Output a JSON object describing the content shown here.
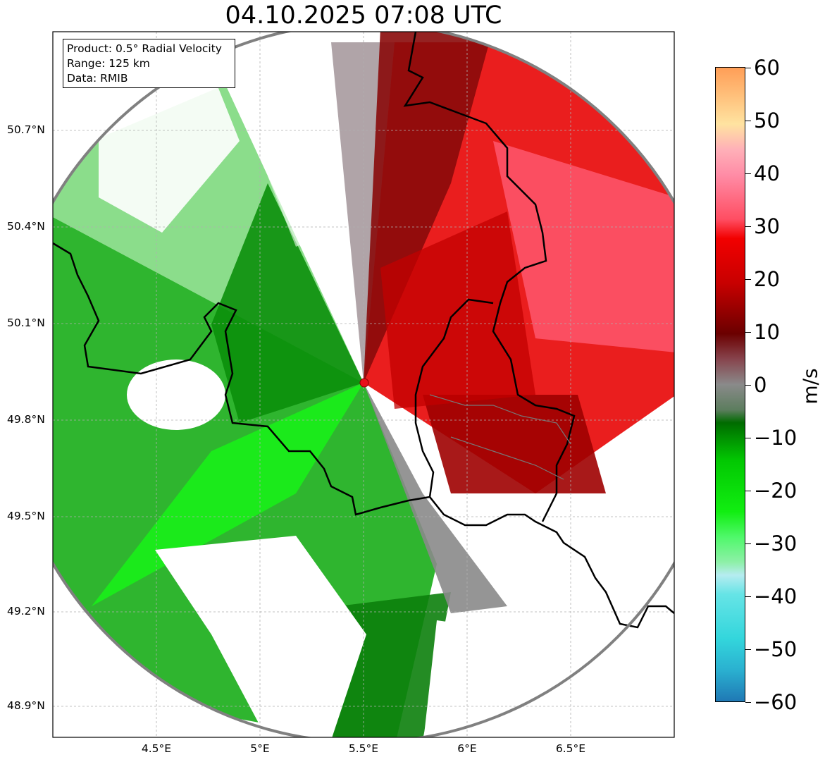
{
  "map": {
    "title": "04.10.2025 07:08 UTC",
    "info_box": {
      "product": "Product: 0.5° Radial Velocity",
      "range": "Range: 125 km",
      "source": "Data: RMIB"
    },
    "lat_labels": [
      "50.7°N",
      "50.4°N",
      "50.1°N",
      "49.8°N",
      "49.5°N",
      "49.2°N",
      "48.9°N"
    ],
    "lon_labels": [
      "4.5°E",
      "5°E",
      "5.5°E",
      "6°E",
      "6.5°E"
    ],
    "radar_site": "red-dot",
    "colorbar": {
      "unit": "m/s",
      "ticks": [
        "60",
        "50",
        "40",
        "30",
        "20",
        "10",
        "0",
        "−10",
        "−20",
        "−30",
        "−40",
        "−50",
        "−60"
      ],
      "range": [
        -60,
        60
      ],
      "colors": [
        "#1f77b4",
        "#2ab0d0",
        "#33d6dc",
        "#66e4e6",
        "#9ae9ee",
        "#b6ecf0",
        "#8ef0a8",
        "#4ff86a",
        "#11ee11",
        "#02c802",
        "#009a00",
        "#006b00",
        "#5c7d5e",
        "#8a8a8a",
        "#8a6670",
        "#87444d",
        "#6b0000",
        "#a50000",
        "#d00000",
        "#f20000",
        "#ff4d62",
        "#ff8ca6",
        "#ff9dd6",
        "#ffb0b8",
        "#ffe3a0",
        "#ffc882",
        "#ff9d56"
      ]
    }
  }
}
